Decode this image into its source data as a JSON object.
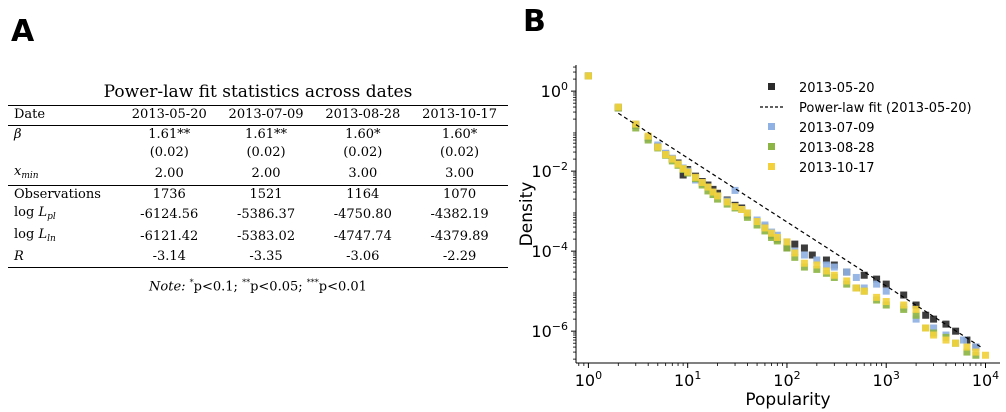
{
  "panels": {
    "a": "A",
    "b": "B"
  },
  "table": {
    "caption": "Power-law fit statistics across dates",
    "columns": [
      "Date",
      "2013-05-20",
      "2013-07-09",
      "2013-08-28",
      "2013-10-17"
    ],
    "rows": {
      "beta": {
        "label": "β",
        "values": [
          "1.61**",
          "1.61**",
          "1.60*",
          "1.60*"
        ]
      },
      "beta_se": {
        "label": "",
        "values": [
          "(0.02)",
          "(0.02)",
          "(0.02)",
          "(0.02)"
        ]
      },
      "xmin": {
        "label": "x",
        "label_sub": "min",
        "values": [
          "2.00",
          "2.00",
          "3.00",
          "3.00"
        ]
      },
      "observations": {
        "label": "Observations",
        "values": [
          "1736",
          "1521",
          "1164",
          "1070"
        ]
      },
      "log_l_pl": {
        "label_prefix": "log",
        "label": "L",
        "label_sub": "pl",
        "values": [
          "-6124.56",
          "-5386.37",
          "-4750.80",
          "-4382.19"
        ]
      },
      "log_l_ln": {
        "label_prefix": "log",
        "label": "L",
        "label_sub": "ln",
        "values": [
          "-6121.42",
          "-5383.02",
          "-4747.74",
          "-4379.89"
        ]
      },
      "r": {
        "label": "R",
        "values": [
          "-3.14",
          "-3.35",
          "-3.06",
          "-2.29"
        ]
      }
    },
    "note": {
      "prefix": "Note:",
      "items": [
        {
          "stars": "*",
          "text": "p<0.1;"
        },
        {
          "stars": "**",
          "text": "p<0.05;"
        },
        {
          "stars": "***",
          "text": "p<0.01"
        }
      ]
    }
  },
  "chart_data": {
    "type": "scatter",
    "xlabel": "Popularity",
    "ylabel": "Density",
    "xscale": "log",
    "yscale": "log",
    "xlim": [
      0.75,
      14000
    ],
    "ylim": [
      1.6e-07,
      4.5
    ],
    "xticks": [
      {
        "base": "10",
        "exp": "0",
        "value": 1
      },
      {
        "base": "10",
        "exp": "1",
        "value": 10
      },
      {
        "base": "10",
        "exp": "2",
        "value": 100
      },
      {
        "base": "10",
        "exp": "3",
        "value": 1000
      },
      {
        "base": "10",
        "exp": "4",
        "value": 10000
      }
    ],
    "yticks": [
      {
        "base": "10",
        "exp": "0",
        "value": 1
      },
      {
        "base": "10",
        "exp": "−2",
        "value": 0.01
      },
      {
        "base": "10",
        "exp": "−4",
        "value": 0.0001
      },
      {
        "base": "10",
        "exp": "−6",
        "value": 1e-06
      }
    ],
    "legend_position": "top-right",
    "series": [
      {
        "name": "2013-05-20",
        "color": "#2b2b2b",
        "marker": "square",
        "points": [
          [
            1,
            2.4
          ],
          [
            2,
            0.38
          ],
          [
            3,
            0.14
          ],
          [
            4,
            0.068
          ],
          [
            5,
            0.041
          ],
          [
            6,
            0.027
          ],
          [
            7,
            0.02
          ],
          [
            8,
            0.016
          ],
          [
            9,
            0.008
          ],
          [
            10,
            0.011
          ],
          [
            12,
            0.0075
          ],
          [
            14,
            0.0055
          ],
          [
            16,
            0.0045
          ],
          [
            18,
            0.0035
          ],
          [
            20,
            0.0028
          ],
          [
            25,
            0.0019
          ],
          [
            30,
            0.0014
          ],
          [
            35,
            0.0012
          ],
          [
            40,
            0.0008
          ],
          [
            50,
            0.00055
          ],
          [
            60,
            0.0004
          ],
          [
            70,
            0.00025
          ],
          [
            80,
            0.0002
          ],
          [
            100,
            0.00012
          ],
          [
            120,
            0.00015
          ],
          [
            150,
            0.00012
          ],
          [
            180,
            8e-05
          ],
          [
            250,
            6e-05
          ],
          [
            300,
            4.5e-05
          ],
          [
            400,
            3e-05
          ],
          [
            500,
            1.2e-05
          ],
          [
            600,
            2.5e-05
          ],
          [
            800,
            2e-05
          ],
          [
            1000,
            1.5e-05
          ],
          [
            1500,
            8e-06
          ],
          [
            2000,
            4.5e-06
          ],
          [
            2500,
            2.5e-06
          ],
          [
            3000,
            2e-06
          ],
          [
            4000,
            1.5e-06
          ],
          [
            5000,
            1e-06
          ],
          [
            6500,
            6e-07
          ],
          [
            8000,
            4e-07
          ]
        ]
      },
      {
        "name": "2013-07-09",
        "color": "#8fb1e3",
        "marker": "square",
        "points": [
          [
            1,
            2.4
          ],
          [
            2,
            0.4
          ],
          [
            3,
            0.15
          ],
          [
            4,
            0.07
          ],
          [
            5,
            0.045
          ],
          [
            6,
            0.028
          ],
          [
            7,
            0.021
          ],
          [
            8,
            0.015
          ],
          [
            9,
            0.012
          ],
          [
            10,
            0.01
          ],
          [
            12,
            0.006
          ],
          [
            14,
            0.005
          ],
          [
            16,
            0.004
          ],
          [
            18,
            0.003
          ],
          [
            20,
            0.0024
          ],
          [
            25,
            0.0018
          ],
          [
            30,
            0.0033
          ],
          [
            35,
            0.0011
          ],
          [
            40,
            0.0009
          ],
          [
            50,
            0.0006
          ],
          [
            60,
            0.00045
          ],
          [
            70,
            0.0003
          ],
          [
            80,
            0.00025
          ],
          [
            100,
            0.00017
          ],
          [
            120,
            0.0001
          ],
          [
            150,
            8e-05
          ],
          [
            200,
            6e-05
          ],
          [
            250,
            4.5e-05
          ],
          [
            300,
            4e-05
          ],
          [
            400,
            3e-05
          ],
          [
            500,
            2.2e-05
          ],
          [
            600,
            1.2e-05
          ],
          [
            800,
            1.5e-05
          ],
          [
            1000,
            1e-05
          ],
          [
            1500,
            4e-06
          ],
          [
            2000,
            2e-06
          ],
          [
            3000,
            1.2e-06
          ],
          [
            4000,
            8e-07
          ],
          [
            6000,
            6e-07
          ],
          [
            8000,
            4e-07
          ]
        ]
      },
      {
        "name": "2013-08-28",
        "color": "#8db545",
        "marker": "square",
        "points": [
          [
            1,
            2.4
          ],
          [
            2,
            0.38
          ],
          [
            3,
            0.12
          ],
          [
            4,
            0.06
          ],
          [
            5,
            0.038
          ],
          [
            6,
            0.025
          ],
          [
            7,
            0.018
          ],
          [
            8,
            0.014
          ],
          [
            9,
            0.011
          ],
          [
            10,
            0.009
          ],
          [
            12,
            0.0065
          ],
          [
            14,
            0.0045
          ],
          [
            16,
            0.0032
          ],
          [
            18,
            0.0026
          ],
          [
            20,
            0.002
          ],
          [
            25,
            0.0015
          ],
          [
            30,
            0.0012
          ],
          [
            40,
            0.0007
          ],
          [
            50,
            0.00045
          ],
          [
            60,
            0.00032
          ],
          [
            70,
            0.00022
          ],
          [
            80,
            0.00018
          ],
          [
            100,
            0.00012
          ],
          [
            120,
            7e-05
          ],
          [
            150,
            4e-05
          ],
          [
            200,
            3.5e-05
          ],
          [
            250,
            2.8e-05
          ],
          [
            300,
            2.2e-05
          ],
          [
            400,
            1.5e-05
          ],
          [
            500,
            1.2e-05
          ],
          [
            600,
            1e-05
          ],
          [
            800,
            6e-06
          ],
          [
            1000,
            4.5e-06
          ],
          [
            1500,
            3.5e-06
          ],
          [
            2000,
            2.5e-06
          ],
          [
            2500,
            1.2e-06
          ],
          [
            3000,
            9e-07
          ],
          [
            4000,
            7e-07
          ],
          [
            5000,
            5e-07
          ],
          [
            6500,
            3e-07
          ],
          [
            8000,
            2.5e-07
          ]
        ]
      },
      {
        "name": "2013-10-17",
        "color": "#f2d13c",
        "marker": "square",
        "points": [
          [
            1,
            2.4
          ],
          [
            2,
            0.4
          ],
          [
            3,
            0.15
          ],
          [
            4,
            0.075
          ],
          [
            5,
            0.04
          ],
          [
            6,
            0.026
          ],
          [
            7,
            0.02
          ],
          [
            8,
            0.015
          ],
          [
            9,
            0.0115
          ],
          [
            10,
            0.0095
          ],
          [
            12,
            0.007
          ],
          [
            14,
            0.0052
          ],
          [
            16,
            0.004
          ],
          [
            18,
            0.003
          ],
          [
            20,
            0.0024
          ],
          [
            25,
            0.0017
          ],
          [
            30,
            0.0013
          ],
          [
            35,
            0.0011
          ],
          [
            40,
            0.0009
          ],
          [
            50,
            0.00055
          ],
          [
            60,
            0.00038
          ],
          [
            70,
            0.00028
          ],
          [
            80,
            0.00022
          ],
          [
            100,
            0.00017
          ],
          [
            120,
            9e-05
          ],
          [
            150,
            5e-05
          ],
          [
            200,
            4.5e-05
          ],
          [
            250,
            3.2e-05
          ],
          [
            300,
            2.5e-05
          ],
          [
            400,
            1.8e-05
          ],
          [
            500,
            1.2e-05
          ],
          [
            600,
            1e-05
          ],
          [
            800,
            7e-06
          ],
          [
            1000,
            5.5e-06
          ],
          [
            1500,
            4.5e-06
          ],
          [
            2000,
            3.5e-06
          ],
          [
            2500,
            1.2e-06
          ],
          [
            3000,
            8e-07
          ],
          [
            4000,
            6e-07
          ],
          [
            5000,
            5e-07
          ],
          [
            6500,
            4e-07
          ],
          [
            8000,
            3e-07
          ],
          [
            10000,
            2.5e-07
          ]
        ]
      }
    ],
    "fit_line": {
      "name": "Power-law fit (2013-05-20)",
      "color": "#000000",
      "style": "dashed",
      "x": [
        2,
        9000
      ],
      "y": [
        0.28,
        4e-07
      ]
    },
    "legend": [
      {
        "kind": "marker",
        "series": 0
      },
      {
        "kind": "line"
      },
      {
        "kind": "marker",
        "series": 1
      },
      {
        "kind": "marker",
        "series": 2
      },
      {
        "kind": "marker",
        "series": 3
      }
    ]
  }
}
